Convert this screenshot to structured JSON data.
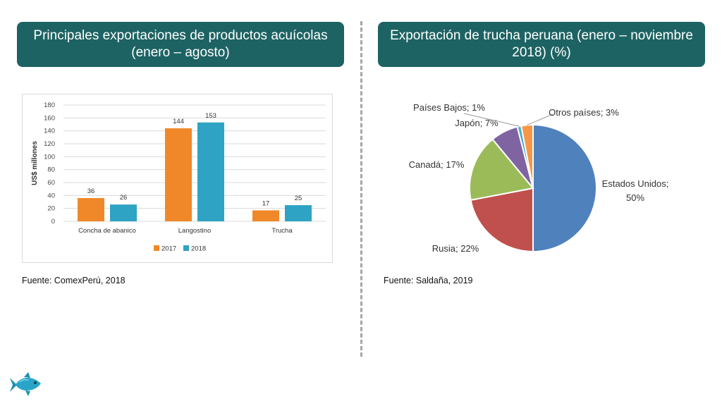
{
  "left_panel": {
    "title": "Principales exportaciones de productos acuícolas (enero – agosto)",
    "source": "Fuente: ComexPerú, 2018"
  },
  "right_panel": {
    "title": "Exportación de trucha peruana (enero – noviembre 2018) (%)",
    "source": "Fuente: Saldaña, 2019"
  },
  "colors": {
    "header_bg": "#1e6363",
    "bar_2017": "#f0882a",
    "bar_2018": "#2ea3c4"
  },
  "icons": {
    "corner": "fish-icon"
  },
  "chart_data": [
    {
      "type": "bar",
      "title": "",
      "xlabel": "",
      "ylabel": "US$ millones",
      "ylim": [
        0,
        180
      ],
      "yticks": [
        0,
        20,
        40,
        60,
        80,
        100,
        120,
        140,
        160,
        180
      ],
      "categories": [
        "Concha de abanico",
        "Langostino",
        "Trucha"
      ],
      "series": [
        {
          "name": "2017",
          "values": [
            36,
            144,
            17
          ],
          "color": "#f0882a"
        },
        {
          "name": "2018",
          "values": [
            26,
            153,
            25
          ],
          "color": "#2ea3c4"
        }
      ],
      "grid": true,
      "legend": "bottom"
    },
    {
      "type": "pie",
      "title": "",
      "slices": [
        {
          "label": "Estados Unidos; 50%",
          "value": 50,
          "color": "#4f81bd"
        },
        {
          "label": "Rusia; 22%",
          "value": 22,
          "color": "#c0504d"
        },
        {
          "label": "Canadá; 17%",
          "value": 17,
          "color": "#9bbb59"
        },
        {
          "label": "Japón; 7%",
          "value": 7,
          "color": "#8064a2"
        },
        {
          "label": "Países Bajos; 1%",
          "value": 1,
          "color": "#4bacc6"
        },
        {
          "label": "Otros países; 3%",
          "value": 3,
          "color": "#f79646"
        }
      ]
    }
  ]
}
